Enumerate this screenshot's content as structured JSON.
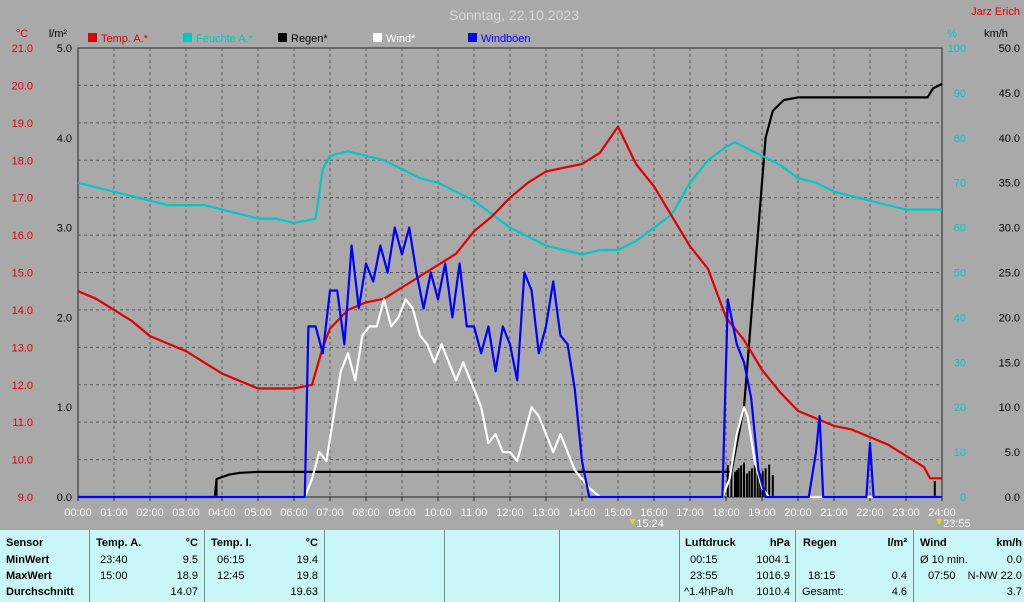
{
  "title": "Sonntag, 22.10.2023",
  "author": "Jarz Erich",
  "units": {
    "temp": "°C",
    "rain": "l/m²",
    "pct": "%",
    "wind": "km/h"
  },
  "colors": {
    "temp": "#e00000",
    "humidity": "#00c8c8",
    "rain": "#000000",
    "wind": "#ffffff",
    "gust": "#0000ff",
    "background": "#a9a9a9",
    "panel": "#c9f7f7"
  },
  "chart_data": {
    "type": "line",
    "title": "Sonntag, 22.10.2023",
    "x_ticks": [
      "00:00",
      "01:00",
      "02:00",
      "03:00",
      "04:00",
      "05:00",
      "06:00",
      "07:00",
      "08:00",
      "09:00",
      "10:00",
      "11:00",
      "12:00",
      "13:00",
      "14:00",
      "15:00",
      "16:00",
      "17:00",
      "18:00",
      "19:00",
      "20:00",
      "21:00",
      "22:00",
      "23:00",
      "24:00"
    ],
    "axes": {
      "temp": {
        "label": "°C",
        "range": [
          9.0,
          21.0
        ],
        "ticks": [
          "9.0",
          "10.0",
          "11.0",
          "12.0",
          "13.0",
          "14.0",
          "15.0",
          "16.0",
          "17.0",
          "18.0",
          "19.0",
          "20.0",
          "21.0"
        ]
      },
      "rain": {
        "label": "l/m²",
        "range": [
          0.0,
          5.0
        ],
        "ticks": [
          "0.0",
          "1.0",
          "2.0",
          "3.0",
          "4.0",
          "5.0"
        ]
      },
      "humidity": {
        "label": "%",
        "range": [
          0,
          100
        ],
        "ticks": [
          "0",
          "10",
          "20",
          "30",
          "40",
          "50",
          "60",
          "70",
          "80",
          "90",
          "100"
        ]
      },
      "wind": {
        "label": "km/h",
        "range": [
          0.0,
          50.0
        ],
        "ticks": [
          "0.0",
          "5.0",
          "10.0",
          "15.0",
          "20.0",
          "25.0",
          "30.0",
          "35.0",
          "40.0",
          "45.0",
          "50.0"
        ]
      }
    },
    "markers": [
      "15:24",
      "23:55"
    ],
    "grid": true,
    "legend_position": "top",
    "series": [
      {
        "name": "Temp. A.*",
        "color": "#e00000",
        "axis": "temp",
        "points": [
          [
            0,
            14.5
          ],
          [
            0.5,
            14.3
          ],
          [
            1,
            14.0
          ],
          [
            1.5,
            13.7
          ],
          [
            2,
            13.3
          ],
          [
            2.5,
            13.1
          ],
          [
            3,
            12.9
          ],
          [
            3.5,
            12.6
          ],
          [
            4,
            12.3
          ],
          [
            4.5,
            12.1
          ],
          [
            5,
            11.9
          ],
          [
            5.5,
            11.9
          ],
          [
            6,
            11.9
          ],
          [
            6.5,
            12.0
          ],
          [
            6.8,
            13.0
          ],
          [
            7,
            13.5
          ],
          [
            7.5,
            14.0
          ],
          [
            8,
            14.2
          ],
          [
            8.5,
            14.3
          ],
          [
            9,
            14.6
          ],
          [
            9.5,
            14.9
          ],
          [
            10,
            15.2
          ],
          [
            10.5,
            15.5
          ],
          [
            11,
            16.1
          ],
          [
            11.5,
            16.5
          ],
          [
            12,
            17.0
          ],
          [
            12.5,
            17.4
          ],
          [
            13,
            17.7
          ],
          [
            13.5,
            17.8
          ],
          [
            14,
            17.9
          ],
          [
            14.5,
            18.2
          ],
          [
            15,
            18.9
          ],
          [
            15.5,
            17.9
          ],
          [
            16,
            17.3
          ],
          [
            16.5,
            16.5
          ],
          [
            17,
            15.7
          ],
          [
            17.5,
            15.1
          ],
          [
            18,
            13.8
          ],
          [
            18.5,
            13.2
          ],
          [
            19,
            12.4
          ],
          [
            19.5,
            11.8
          ],
          [
            20,
            11.3
          ],
          [
            20.5,
            11.1
          ],
          [
            21,
            10.9
          ],
          [
            21.5,
            10.8
          ],
          [
            22,
            10.6
          ],
          [
            22.5,
            10.4
          ],
          [
            23,
            10.1
          ],
          [
            23.5,
            9.8
          ],
          [
            23.67,
            9.5
          ],
          [
            24,
            9.5
          ]
        ]
      },
      {
        "name": "Feuchte A.*",
        "color": "#00c8c8",
        "axis": "humidity",
        "points": [
          [
            0,
            70
          ],
          [
            0.5,
            69
          ],
          [
            1,
            68
          ],
          [
            1.5,
            67
          ],
          [
            2,
            66
          ],
          [
            2.5,
            65
          ],
          [
            3,
            65
          ],
          [
            3.5,
            65
          ],
          [
            4,
            64
          ],
          [
            4.5,
            63
          ],
          [
            5,
            62
          ],
          [
            5.5,
            62
          ],
          [
            6,
            61
          ],
          [
            6.6,
            62
          ],
          [
            6.8,
            73
          ],
          [
            7,
            76
          ],
          [
            7.5,
            77
          ],
          [
            8,
            76
          ],
          [
            8.5,
            75
          ],
          [
            9,
            73
          ],
          [
            9.5,
            71
          ],
          [
            10,
            70
          ],
          [
            10.5,
            68
          ],
          [
            11,
            66
          ],
          [
            11.5,
            63
          ],
          [
            12,
            60
          ],
          [
            12.5,
            58
          ],
          [
            13,
            56
          ],
          [
            13.5,
            55
          ],
          [
            14,
            54
          ],
          [
            14.5,
            55
          ],
          [
            15,
            55
          ],
          [
            15.5,
            57
          ],
          [
            16,
            60
          ],
          [
            16.5,
            63
          ],
          [
            17,
            70
          ],
          [
            17.5,
            75
          ],
          [
            18,
            78
          ],
          [
            18.25,
            79
          ],
          [
            18.5,
            78
          ],
          [
            19,
            76
          ],
          [
            19.5,
            74
          ],
          [
            20,
            71
          ],
          [
            20.5,
            70
          ],
          [
            21,
            68
          ],
          [
            21.5,
            67
          ],
          [
            22,
            66
          ],
          [
            22.5,
            65
          ],
          [
            23,
            64
          ],
          [
            23.5,
            64
          ],
          [
            24,
            64
          ]
        ]
      },
      {
        "name": "Regen*",
        "color": "#000000",
        "axis": "rain",
        "points": [
          [
            0,
            0
          ],
          [
            3.8,
            0
          ],
          [
            3.85,
            0.2
          ],
          [
            4.2,
            0.25
          ],
          [
            4.5,
            0.27
          ],
          [
            5,
            0.28
          ],
          [
            18.15,
            0.28
          ],
          [
            18.5,
            1.0
          ],
          [
            18.7,
            2.0
          ],
          [
            18.9,
            3.0
          ],
          [
            19.1,
            4.0
          ],
          [
            19.3,
            4.3
          ],
          [
            19.6,
            4.42
          ],
          [
            20,
            4.45
          ],
          [
            21,
            4.45
          ],
          [
            22,
            4.45
          ],
          [
            23,
            4.45
          ],
          [
            23.6,
            4.45
          ],
          [
            23.75,
            4.55
          ],
          [
            24,
            4.6
          ]
        ]
      },
      {
        "name": "Wind*",
        "color": "#ffffff",
        "axis": "wind",
        "points": [
          [
            0,
            0
          ],
          [
            6.3,
            0
          ],
          [
            6.5,
            2
          ],
          [
            6.7,
            5
          ],
          [
            6.9,
            4
          ],
          [
            7.1,
            9
          ],
          [
            7.3,
            14
          ],
          [
            7.5,
            16
          ],
          [
            7.7,
            13
          ],
          [
            7.9,
            18
          ],
          [
            8.1,
            19
          ],
          [
            8.3,
            19
          ],
          [
            8.5,
            22
          ],
          [
            8.7,
            19
          ],
          [
            8.9,
            20
          ],
          [
            9.1,
            22
          ],
          [
            9.3,
            21
          ],
          [
            9.5,
            18
          ],
          [
            9.7,
            17
          ],
          [
            9.9,
            15
          ],
          [
            10.1,
            17
          ],
          [
            10.3,
            15
          ],
          [
            10.5,
            13
          ],
          [
            10.7,
            15
          ],
          [
            11,
            12
          ],
          [
            11.2,
            10
          ],
          [
            11.4,
            6
          ],
          [
            11.6,
            7
          ],
          [
            11.8,
            5
          ],
          [
            12,
            5
          ],
          [
            12.2,
            4
          ],
          [
            12.4,
            7
          ],
          [
            12.6,
            10
          ],
          [
            12.8,
            9
          ],
          [
            13,
            7
          ],
          [
            13.2,
            5
          ],
          [
            13.4,
            7
          ],
          [
            13.6,
            5
          ],
          [
            13.8,
            3
          ],
          [
            14,
            2
          ],
          [
            14.2,
            1
          ],
          [
            14.5,
            0
          ],
          [
            17.9,
            0
          ],
          [
            18.1,
            2
          ],
          [
            18.3,
            7
          ],
          [
            18.5,
            10
          ],
          [
            18.6,
            9
          ],
          [
            18.8,
            4
          ],
          [
            19,
            1
          ],
          [
            19.2,
            0
          ],
          [
            24,
            0
          ]
        ]
      },
      {
        "name": "Windböen",
        "color": "#0000ff",
        "axis": "wind",
        "points": [
          [
            0,
            0
          ],
          [
            6.3,
            0
          ],
          [
            6.4,
            19
          ],
          [
            6.6,
            19
          ],
          [
            6.8,
            16
          ],
          [
            7,
            23
          ],
          [
            7.2,
            23
          ],
          [
            7.4,
            17
          ],
          [
            7.6,
            28
          ],
          [
            7.8,
            21
          ],
          [
            8,
            26
          ],
          [
            8.2,
            24
          ],
          [
            8.4,
            28
          ],
          [
            8.6,
            25
          ],
          [
            8.8,
            30
          ],
          [
            9,
            27
          ],
          [
            9.2,
            30
          ],
          [
            9.4,
            25
          ],
          [
            9.6,
            21
          ],
          [
            9.8,
            25
          ],
          [
            10,
            22
          ],
          [
            10.2,
            26
          ],
          [
            10.4,
            20
          ],
          [
            10.6,
            26
          ],
          [
            10.8,
            19
          ],
          [
            11,
            19
          ],
          [
            11.2,
            16
          ],
          [
            11.4,
            19
          ],
          [
            11.6,
            14
          ],
          [
            11.8,
            19
          ],
          [
            12,
            17
          ],
          [
            12.2,
            13
          ],
          [
            12.4,
            25
          ],
          [
            12.6,
            23
          ],
          [
            12.8,
            16
          ],
          [
            13,
            19
          ],
          [
            13.2,
            24
          ],
          [
            13.4,
            18
          ],
          [
            13.6,
            17
          ],
          [
            13.8,
            12
          ],
          [
            14,
            4
          ],
          [
            14.2,
            0
          ],
          [
            17.9,
            0
          ],
          [
            18.05,
            22
          ],
          [
            18.3,
            17
          ],
          [
            18.5,
            15
          ],
          [
            18.7,
            11
          ],
          [
            18.9,
            3
          ],
          [
            19.1,
            0
          ],
          [
            20.3,
            0
          ],
          [
            20.5,
            5
          ],
          [
            20.6,
            9
          ],
          [
            20.7,
            0
          ],
          [
            21.9,
            0
          ],
          [
            22,
            6
          ],
          [
            22.1,
            0
          ],
          [
            24,
            0
          ]
        ]
      }
    ],
    "rain_bars": {
      "color": "#000000",
      "times": [
        18.05,
        18.15,
        18.25,
        18.3,
        18.35,
        18.42,
        18.5,
        18.58,
        18.65,
        18.72,
        18.8,
        18.88,
        18.95,
        19.02,
        19.1,
        19.2,
        19.3,
        3.85,
        23.8
      ]
    }
  },
  "panel": {
    "sensor": {
      "header": "Sensor",
      "rows": [
        "MinWert",
        "MaxWert",
        "Durchschnitt"
      ]
    },
    "temp_a": {
      "header": "Temp. A.",
      "unit": "°C",
      "rows": [
        [
          "23:40",
          "9.5"
        ],
        [
          "15:00",
          "18.9"
        ],
        [
          "",
          "14.07"
        ]
      ]
    },
    "temp_i": {
      "header": "Temp. I.",
      "unit": "°C",
      "rows": [
        [
          "06:15",
          "19.4"
        ],
        [
          "12:45",
          "19.8"
        ],
        [
          "",
          "19.63"
        ]
      ]
    },
    "luftdruck": {
      "header": "Luftdruck",
      "unit": "hPa",
      "rows": [
        [
          "00:15",
          "1004.1"
        ],
        [
          "23:55",
          "1016.9"
        ],
        [
          "^1.4hPa/h",
          "1010.4"
        ]
      ]
    },
    "regen": {
      "header": "Regen",
      "unit": "l/m²",
      "rows": [
        [
          "",
          ""
        ],
        [
          "18:15",
          "0.4"
        ],
        [
          "Gesamt:",
          "4.6"
        ]
      ]
    },
    "wind": {
      "header": "Wind",
      "unit": "km/h",
      "rows": [
        [
          "Ø 10 min.",
          "0.0"
        ],
        [
          "07:50",
          "N-NW 22.0"
        ],
        [
          "",
          "3.7"
        ]
      ]
    }
  }
}
